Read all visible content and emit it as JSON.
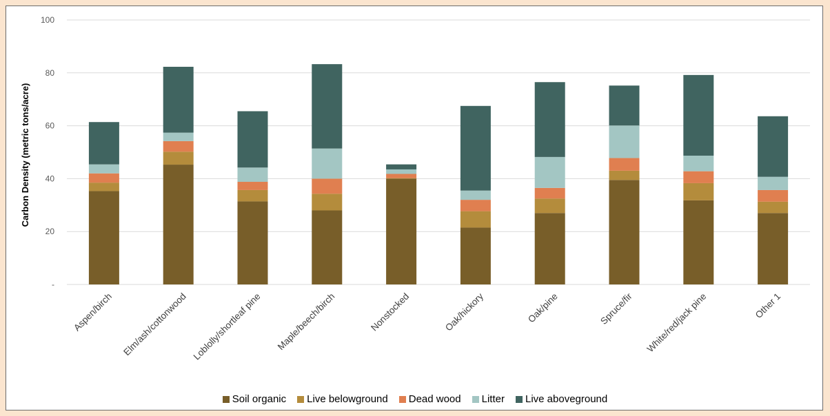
{
  "chart_data": {
    "type": "bar",
    "stacked": true,
    "ylabel": "Carbon Density (metric tons/acre)",
    "xlabel": "",
    "ylim": [
      0,
      100
    ],
    "yticks": [
      {
        "value": 0,
        "label": "-"
      },
      {
        "value": 20,
        "label": "20"
      },
      {
        "value": 40,
        "label": "40"
      },
      {
        "value": 60,
        "label": "60"
      },
      {
        "value": 80,
        "label": "80"
      },
      {
        "value": 100,
        "label": "100"
      }
    ],
    "grid": true,
    "legend_position": "bottom",
    "categories": [
      "Aspen/birch",
      "Elm/ash/cottonwood",
      "Loblolly/shortleaf pine",
      "Maple/beech/birch",
      "Nonstocked",
      "Oak/hickory",
      "Oak/pine",
      "Spruce/fir",
      "White/red/jack pine",
      "Other 1"
    ],
    "series": [
      {
        "name": "Soil organic",
        "color": "#785e29",
        "values": [
          35.3,
          45.3,
          31.4,
          28.0,
          40.0,
          21.5,
          27.0,
          39.5,
          31.8,
          27.0
        ]
      },
      {
        "name": "Live belowground",
        "color": "#b48c3c",
        "values": [
          3.2,
          4.9,
          4.3,
          6.3,
          0.2,
          6.2,
          5.5,
          3.5,
          6.5,
          4.3
        ]
      },
      {
        "name": "Dead wood",
        "color": "#e07f50",
        "values": [
          3.5,
          4.0,
          3.1,
          5.7,
          1.6,
          4.3,
          4.0,
          4.8,
          4.5,
          4.4
        ]
      },
      {
        "name": "Litter",
        "color": "#a3c6c3",
        "values": [
          3.4,
          3.2,
          5.4,
          11.4,
          1.7,
          3.5,
          11.7,
          12.3,
          5.9,
          5.0
        ]
      },
      {
        "name": "Live aboveground",
        "color": "#406460",
        "values": [
          16.0,
          24.9,
          21.3,
          31.9,
          1.9,
          32.0,
          28.3,
          15.1,
          30.5,
          22.9
        ]
      }
    ]
  }
}
